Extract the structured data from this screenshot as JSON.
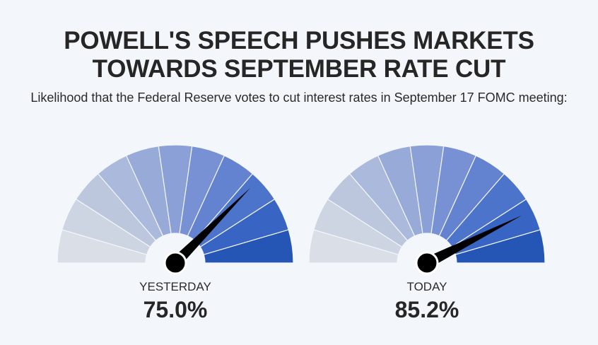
{
  "header": {
    "title_line1": "POWELL'S SPEECH PUSHES MARKETS",
    "title_line2": "TOWARDS SEPTEMBER RATE CUT",
    "subtitle": "Likelihood that the Federal Reserve votes to cut interest rates in September 17 FOMC meeting:"
  },
  "colors": {
    "segments": [
      "#dadfe7",
      "#cdd4e2",
      "#bcc7de",
      "#aab9dc",
      "#97aad8",
      "#8aa0d6",
      "#7891d4",
      "#6383d0",
      "#4d74cb",
      "#3865c3",
      "#2556b5"
    ],
    "needle": "#000000",
    "background": "#f3f6fa"
  },
  "chart_data": [
    {
      "type": "gauge",
      "label": "YESTERDAY",
      "value_text": "75.0%",
      "value": 75.0,
      "range": [
        0,
        100
      ]
    },
    {
      "type": "gauge",
      "label": "TODAY",
      "value_text": "85.2%",
      "value": 85.2,
      "range": [
        0,
        100
      ]
    }
  ]
}
